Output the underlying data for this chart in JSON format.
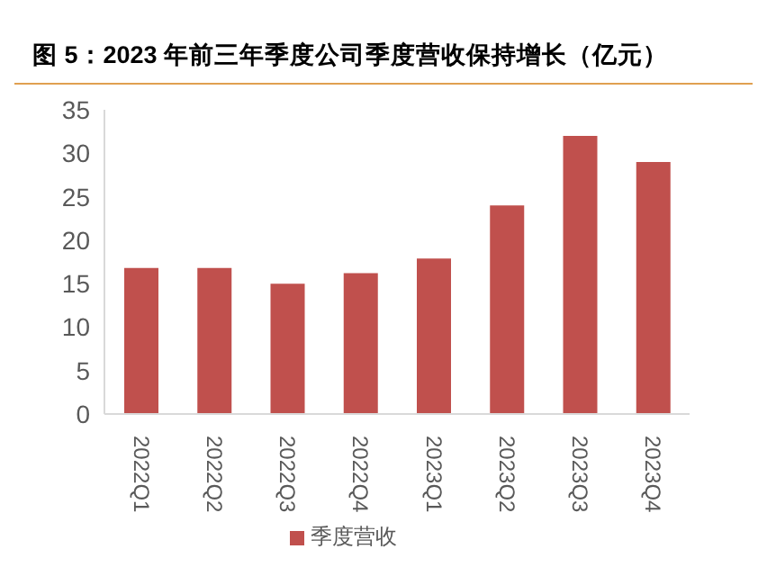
{
  "chart_data": {
    "type": "bar",
    "title": "图 5：2023 年前三年季度公司季度营收保持增长（亿元）",
    "categories": [
      "2022Q1",
      "2022Q2",
      "2022Q3",
      "2022Q4",
      "2023Q1",
      "2023Q2",
      "2023Q3",
      "2023Q4"
    ],
    "series": [
      {
        "name": "季度营收",
        "color": "#c0504d",
        "values": [
          16.8,
          16.8,
          15,
          16.2,
          17.9,
          24,
          32,
          29
        ]
      }
    ],
    "ylim": [
      0,
      35
    ],
    "yticks": [
      0,
      5,
      10,
      15,
      20,
      25,
      30,
      35
    ],
    "grid": false,
    "legend": "bottom"
  }
}
